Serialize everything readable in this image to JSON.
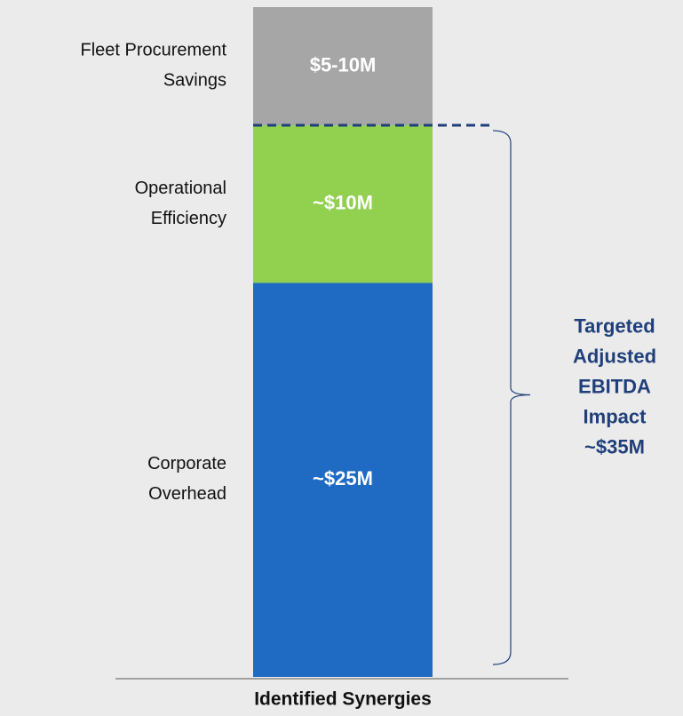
{
  "chart_data": {
    "type": "stacked_bar",
    "categories": [
      "Identified Synergies"
    ],
    "series": [
      {
        "name": "Corporate Overhead",
        "color": "#1f6bc4",
        "values": [
          25
        ],
        "value_labels": [
          "~$25M"
        ]
      },
      {
        "name": "Operational Efficiency",
        "color": "#92d050",
        "values": [
          10
        ],
        "value_labels": [
          "~$10M"
        ]
      },
      {
        "name": "Fleet Procurement Savings",
        "color": "#a6a6a6",
        "values": [
          7.5
        ],
        "value_labels": [
          "$5-10M"
        ]
      }
    ],
    "ylim": [
      0,
      42.5
    ],
    "annotation": "Targeted Adjusted EBITDA Impact ~$35M",
    "annotation_color": "#203f7a"
  }
}
